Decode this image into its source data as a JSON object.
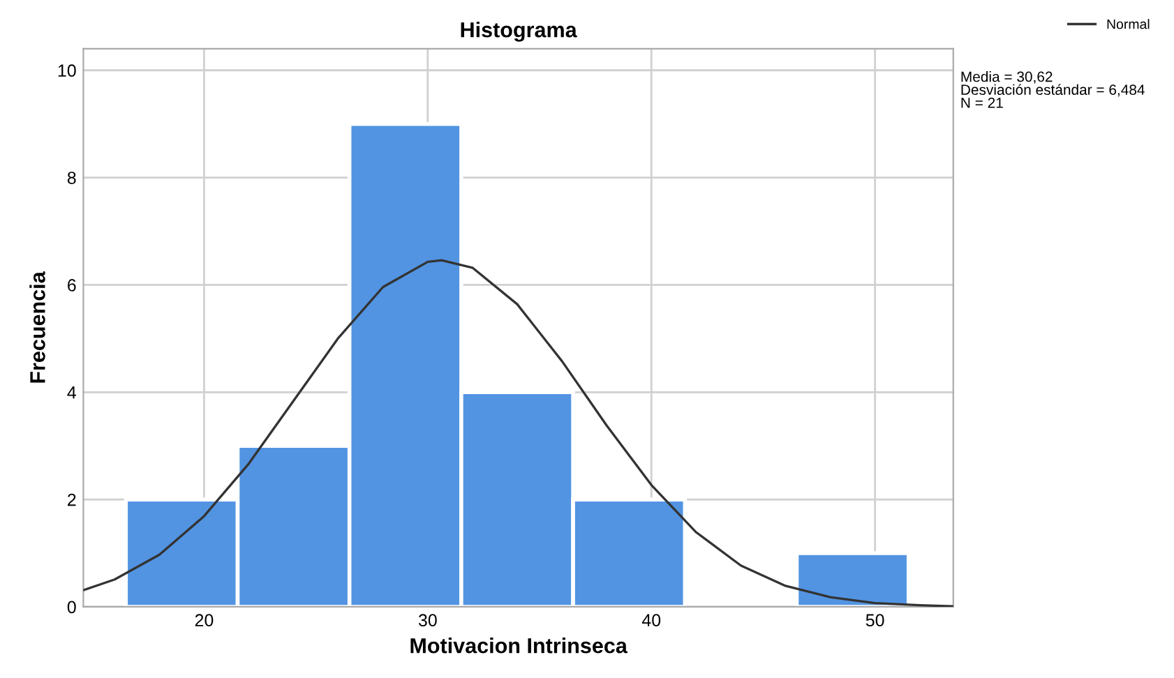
{
  "chart_data": {
    "type": "histogram",
    "title": "Histograma",
    "xlabel": "Motivacion Intrinseca",
    "ylabel": "Frecuencia",
    "bins": [
      16.5,
      21.5,
      26.5,
      31.5,
      36.5,
      41.5,
      46.5,
      51.5
    ],
    "values": [
      2,
      3,
      9,
      4,
      2,
      0,
      1
    ],
    "color": "#5294e2",
    "series": [
      {
        "type": "line",
        "name": "Normal",
        "color": "#333333",
        "x": [
          14.6,
          16,
          18,
          20,
          22,
          24,
          26,
          28,
          30,
          30.62,
          32,
          34,
          36,
          38,
          40,
          42,
          44,
          46,
          48,
          50,
          52,
          53.5
        ],
        "values": [
          0.31,
          0.51,
          0.97,
          1.69,
          2.67,
          3.84,
          5.01,
          5.96,
          6.43,
          6.46,
          6.32,
          5.64,
          4.58,
          3.38,
          2.27,
          1.39,
          0.77,
          0.39,
          0.18,
          0.07,
          0.03,
          0.01
        ]
      }
    ],
    "xlim": [
      14.6,
      53.5
    ],
    "xticks": [
      20,
      30,
      40,
      50
    ],
    "ylim": [
      0,
      10.4
    ],
    "yticks": [
      0,
      2,
      4,
      6,
      8,
      10
    ],
    "grid": true,
    "legend": "top right",
    "annotations": [
      "Media = 30,62\nDesviación estándar = 6,484\nN = 21"
    ]
  }
}
